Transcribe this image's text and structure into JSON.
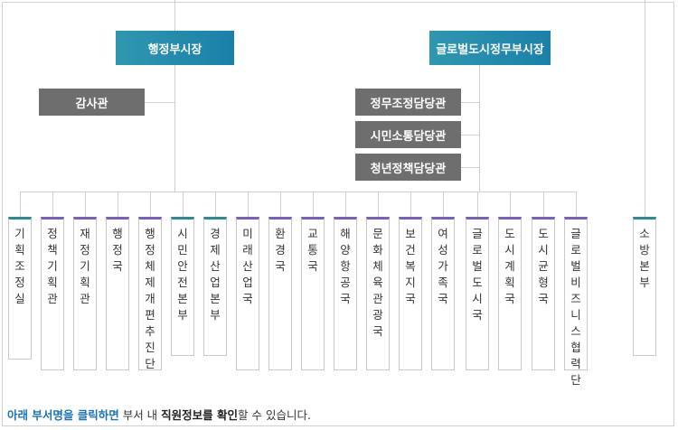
{
  "top": {
    "left_title": "행정부시장",
    "right_title": "글로벌도시정무부시장"
  },
  "staff_left": [
    "감사관"
  ],
  "staff_right": [
    "정무조정담당관",
    "시민소통담당관",
    "청년정책담당관"
  ],
  "departments": [
    {
      "label": "기획조정실",
      "color": "#2a8e8e"
    },
    {
      "label": "정책기획관",
      "color": "#7a5fc3"
    },
    {
      "label": "재정기획관",
      "color": "#7a5fc3"
    },
    {
      "label": "행정국",
      "color": "#7a5fc3"
    },
    {
      "label": "행정체제개편추진단",
      "color": "#7a5fc3"
    },
    {
      "label": "시민안전본부",
      "color": "#2a8e8e"
    },
    {
      "label": "경제산업본부",
      "color": "#2a8e8e"
    },
    {
      "label": "미래산업국",
      "color": "#7a5fc3"
    },
    {
      "label": "환경국",
      "color": "#7a5fc3"
    },
    {
      "label": "교통국",
      "color": "#7a5fc3"
    },
    {
      "label": "해양항공국",
      "color": "#7a5fc3"
    },
    {
      "label": "문화체육관광국",
      "color": "#7a5fc3"
    },
    {
      "label": "보건복지국",
      "color": "#7a5fc3"
    },
    {
      "label": "여성가족국",
      "color": "#7a5fc3"
    },
    {
      "label": "글로벌도시국",
      "color": "#7a5fc3"
    },
    {
      "label": "도시계획국",
      "color": "#7a5fc3"
    },
    {
      "label": "도시균형국",
      "color": "#7a5fc3"
    },
    {
      "label": "글로벌비즈니스협력단",
      "color": "#7a5fc3"
    }
  ],
  "fire": {
    "label": "소방본부",
    "color": "#2a8e8e"
  },
  "footer": {
    "part1": "아래 부서명을 클릭하면",
    "part2": " 부서 내 ",
    "part3": "직원정보를 확인",
    "part4": "할 수 있습니다."
  }
}
